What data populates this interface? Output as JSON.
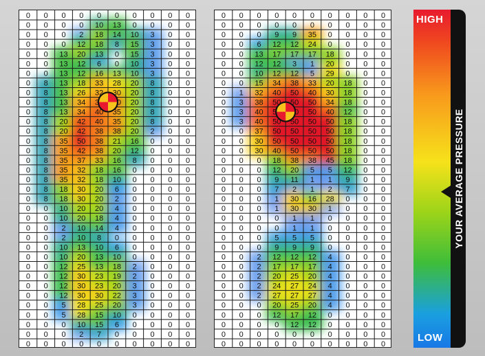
{
  "chart_data": {
    "type": "heatmap",
    "title": "",
    "legend": {
      "high_label": "HIGH",
      "low_label": "LOW",
      "title": "YOUR AVERAGE PRESSURE",
      "colors": [
        "#e8192e",
        "#f8991c",
        "#f6e21a",
        "#3ebd3a",
        "#1878e6"
      ]
    },
    "value_range": [
      0,
      50
    ],
    "left_foot": {
      "columns": 10,
      "center_of_pressure": {
        "row": 9,
        "col": 5
      },
      "rows": [
        [
          "0",
          "0",
          "0",
          "0",
          "0",
          "0",
          "0",
          "0",
          "0",
          "0"
        ],
        [
          "0",
          "0",
          "0",
          "0",
          "10",
          "13",
          "0",
          "0",
          "0",
          "0"
        ],
        [
          "0",
          "0",
          "0",
          "2",
          "18",
          "14",
          "10",
          "3",
          "0",
          "0"
        ],
        [
          "0",
          "0",
          "0",
          "12",
          "18",
          "8",
          "15",
          "3",
          "0",
          "0"
        ],
        [
          "0",
          "0",
          "13",
          "20",
          "13",
          "0",
          "15",
          "3",
          "0",
          "0"
        ],
        [
          "0",
          "0",
          "13",
          "12",
          "6",
          "0",
          "10",
          "3",
          "0",
          "0"
        ],
        [
          "0",
          "0",
          "13",
          "12",
          "16",
          "13",
          "10",
          "3",
          "0",
          "0"
        ],
        [
          "0",
          "8",
          "13",
          "18",
          "33",
          "28",
          "20",
          "8",
          "0",
          "0"
        ],
        [
          "0",
          "8",
          "13",
          "26",
          "32",
          "30",
          "20",
          "8",
          "0",
          "0"
        ],
        [
          "0",
          "8",
          "13",
          "34",
          "38",
          "40",
          "20",
          "8",
          "0",
          "0"
        ],
        [
          "0",
          "8",
          "13",
          "34",
          "40",
          "35",
          "20",
          "8",
          "0",
          "0"
        ],
        [
          "0",
          "8",
          "20",
          "42",
          "40",
          "35",
          "20",
          "8",
          "0",
          "0"
        ],
        [
          "0",
          "8",
          "20",
          "42",
          "38",
          "38",
          "20",
          "2",
          "0",
          "0"
        ],
        [
          "0",
          "8",
          "35",
          "50",
          "38",
          "21",
          "16",
          "0",
          "0",
          "0"
        ],
        [
          "0",
          "8",
          "35",
          "42",
          "38",
          "20",
          "12",
          "0",
          "0",
          "0"
        ],
        [
          "0",
          "8",
          "35",
          "37",
          "33",
          "16",
          "8",
          "0",
          "0",
          "0"
        ],
        [
          "0",
          "8",
          "35",
          "32",
          "18",
          "16",
          "0",
          "0",
          "0",
          "0"
        ],
        [
          "0",
          "8",
          "35",
          "32",
          "18",
          "10",
          "0",
          "0",
          "0",
          "0"
        ],
        [
          "0",
          "8",
          "18",
          "30",
          "20",
          "6",
          "0",
          "0",
          "0",
          "0"
        ],
        [
          "0",
          "8",
          "18",
          "30",
          "20",
          "2",
          "0",
          "0",
          "0",
          "0"
        ],
        [
          "0",
          "0",
          "10",
          "20",
          "20",
          "4",
          "0",
          "0",
          "0",
          "0"
        ],
        [
          "0",
          "0",
          "10",
          "20",
          "18",
          "4",
          "0",
          "0",
          "0",
          "0"
        ],
        [
          "0",
          "0",
          "2",
          "10",
          "14",
          "4",
          "0",
          "0",
          "0",
          "0"
        ],
        [
          "0",
          "0",
          "2",
          "10",
          "8",
          "0",
          "0",
          "0",
          "0",
          "0"
        ],
        [
          "0",
          "0",
          "10",
          "13",
          "10",
          "6",
          "0",
          "0",
          "0",
          "0"
        ],
        [
          "0",
          "0",
          "10",
          "20",
          "13",
          "10",
          "0",
          "0",
          "0",
          "0"
        ],
        [
          "0",
          "0",
          "12",
          "25",
          "13",
          "18",
          "2",
          "0",
          "0",
          "0"
        ],
        [
          "0",
          "0",
          "12",
          "30",
          "23",
          "19",
          "2",
          "0",
          "0",
          "0"
        ],
        [
          "0",
          "0",
          "12",
          "30",
          "23",
          "20",
          "3",
          "0",
          "0",
          "0"
        ],
        [
          "0",
          "0",
          "12",
          "30",
          "30",
          "22",
          "3",
          "0",
          "0",
          "0"
        ],
        [
          "0",
          "0",
          "5",
          "28",
          "25",
          "20",
          "3",
          "0",
          "0",
          "0"
        ],
        [
          "0",
          "0",
          "5",
          "28",
          "15",
          "10",
          "0",
          "0",
          "0",
          "0"
        ],
        [
          "0",
          "0",
          "0",
          "10",
          "15",
          "6",
          "0",
          "0",
          "0",
          "0"
        ],
        [
          "0",
          "0",
          "0",
          "2",
          "7",
          "0",
          "0",
          "0",
          "0",
          "0"
        ],
        [
          "0",
          "0",
          "0",
          "0",
          "0",
          "0",
          "0",
          "0",
          "0",
          "0"
        ]
      ]
    },
    "right_foot": {
      "columns": 10,
      "center_of_pressure": {
        "row": 10,
        "col": 4
      },
      "rows": [
        [
          "0",
          "0",
          "0",
          "0",
          "0",
          "0",
          "0",
          "0",
          "0",
          "0"
        ],
        [
          "0",
          "0",
          "0",
          "0",
          "0",
          "0",
          "0",
          "0",
          "0",
          "0"
        ],
        [
          "0",
          "0",
          "0",
          "9",
          "9",
          "35",
          "0",
          "0",
          "0",
          "0"
        ],
        [
          "0",
          "0",
          "6",
          "12",
          "12",
          "24",
          "0",
          "0",
          "0",
          "0"
        ],
        [
          "0",
          "0",
          "13",
          "17",
          "17",
          "17",
          "18",
          "0",
          "0",
          "0"
        ],
        [
          "0",
          "0",
          "12",
          "12",
          "3",
          "1",
          "20",
          "0",
          "0",
          "0"
        ],
        [
          "0",
          "0",
          "10",
          "12",
          "12",
          "5",
          "29",
          "0",
          "0",
          "0"
        ],
        [
          "0",
          "0",
          "15",
          "34",
          "38",
          "33",
          "20",
          "18",
          "0",
          "0"
        ],
        [
          "0",
          "1",
          "32",
          "40",
          "50",
          "40",
          "30",
          "18",
          "0",
          "0"
        ],
        [
          "0",
          "3",
          "38",
          "50",
          "50",
          "50",
          "34",
          "18",
          "0",
          "0"
        ],
        [
          "0",
          "3",
          "40",
          "50",
          "50",
          "50",
          "40",
          "12",
          "0",
          "0"
        ],
        [
          "0",
          "3",
          "40",
          "50",
          "50",
          "50",
          "50",
          "18",
          "0",
          "0"
        ],
        [
          "0",
          "0",
          "37",
          "50",
          "50",
          "50",
          "50",
          "18",
          "0",
          "0"
        ],
        [
          "0",
          "0",
          "30",
          "50",
          "50",
          "50",
          "50",
          "18",
          "0",
          "0"
        ],
        [
          "0",
          "0",
          "30",
          "40",
          "50",
          "50",
          "50",
          "18",
          "0",
          "0"
        ],
        [
          "0",
          "0",
          "0",
          "18",
          "38",
          "38",
          "45",
          "18",
          "0",
          "0"
        ],
        [
          "0",
          "0",
          "0",
          "12",
          "20",
          "5",
          "5",
          "12",
          "0",
          "0"
        ],
        [
          "0",
          "0",
          "0",
          "9",
          "11",
          "1",
          "1",
          "9",
          "0",
          "0"
        ],
        [
          "0",
          "0",
          "0",
          "7",
          "2",
          "1",
          "2",
          "7",
          "0",
          "0"
        ],
        [
          "0",
          "0",
          "0",
          "1",
          "30",
          "16",
          "28",
          "0",
          "0",
          "0"
        ],
        [
          "0",
          "0",
          "0",
          "1",
          "30",
          "30",
          "1",
          "0",
          "0",
          "0"
        ],
        [
          "0",
          "0",
          "0",
          "0",
          "1",
          "1",
          "0",
          "0",
          "0",
          "0"
        ],
        [
          "0",
          "0",
          "0",
          "0",
          "1",
          "1",
          "0",
          "0",
          "0",
          "0"
        ],
        [
          "0",
          "0",
          "0",
          "5",
          "5",
          "5",
          "0",
          "0",
          "0",
          "0"
        ],
        [
          "0",
          "0",
          "0",
          "9",
          "9",
          "9",
          "0",
          "0",
          "0",
          "0"
        ],
        [
          "0",
          "0",
          "2",
          "12",
          "12",
          "12",
          "4",
          "0",
          "0",
          "0"
        ],
        [
          "0",
          "0",
          "2",
          "17",
          "17",
          "17",
          "4",
          "0",
          "0",
          "0"
        ],
        [
          "0",
          "0",
          "2",
          "20",
          "25",
          "20",
          "4",
          "0",
          "0",
          "0"
        ],
        [
          "0",
          "0",
          "2",
          "24",
          "27",
          "24",
          "4",
          "0",
          "0",
          "0"
        ],
        [
          "0",
          "0",
          "2",
          "27",
          "27",
          "27",
          "4",
          "0",
          "0",
          "0"
        ],
        [
          "0",
          "0",
          "0",
          "20",
          "25",
          "20",
          "4",
          "0",
          "0",
          "0"
        ],
        [
          "0",
          "0",
          "0",
          "12",
          "17",
          "12",
          "0",
          "0",
          "0",
          "0"
        ],
        [
          "0",
          "0",
          "0",
          "0",
          "12",
          "12",
          "0",
          "0",
          "0",
          "0"
        ],
        [
          "0",
          "0",
          "0",
          "0",
          "0",
          "0",
          "0",
          "0",
          "0",
          "0"
        ],
        [
          "0",
          "0",
          "0",
          "0",
          "0",
          "0",
          "0",
          "0",
          "0",
          "0"
        ]
      ]
    }
  }
}
